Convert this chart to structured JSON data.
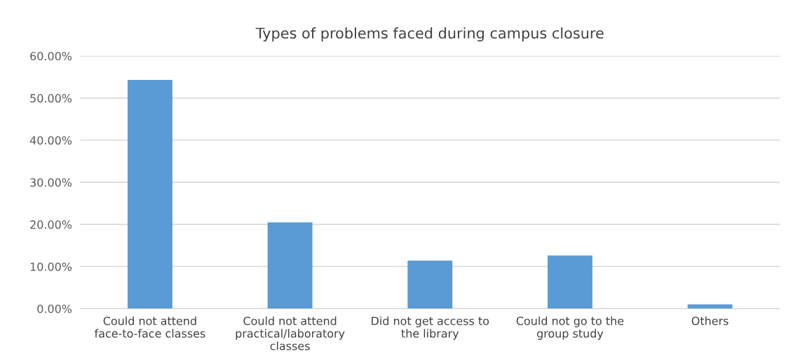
{
  "chart_data": {
    "type": "bar",
    "title": "Types of problems faced during campus closure",
    "categories": [
      "Could not attend\nface-to-face classes",
      "Could not attend\npractical/laboratory\nclasses",
      "Did not get access to\nthe library",
      "Could not go to the\ngroup study",
      "Others"
    ],
    "values": [
      54.3,
      20.5,
      11.4,
      12.6,
      1.0
    ],
    "color": "#5b9bd5",
    "ylim": [
      0,
      60
    ],
    "yticks": [
      {
        "value": 0,
        "label": "0.00%"
      },
      {
        "value": 10,
        "label": "10.00%"
      },
      {
        "value": 20,
        "label": "20.00%"
      },
      {
        "value": 30,
        "label": "30.00%"
      },
      {
        "value": 40,
        "label": "40.00%"
      },
      {
        "value": 50,
        "label": "50.00%"
      },
      {
        "value": 60,
        "label": "60.00%"
      }
    ],
    "grid": "y",
    "legend": false
  }
}
